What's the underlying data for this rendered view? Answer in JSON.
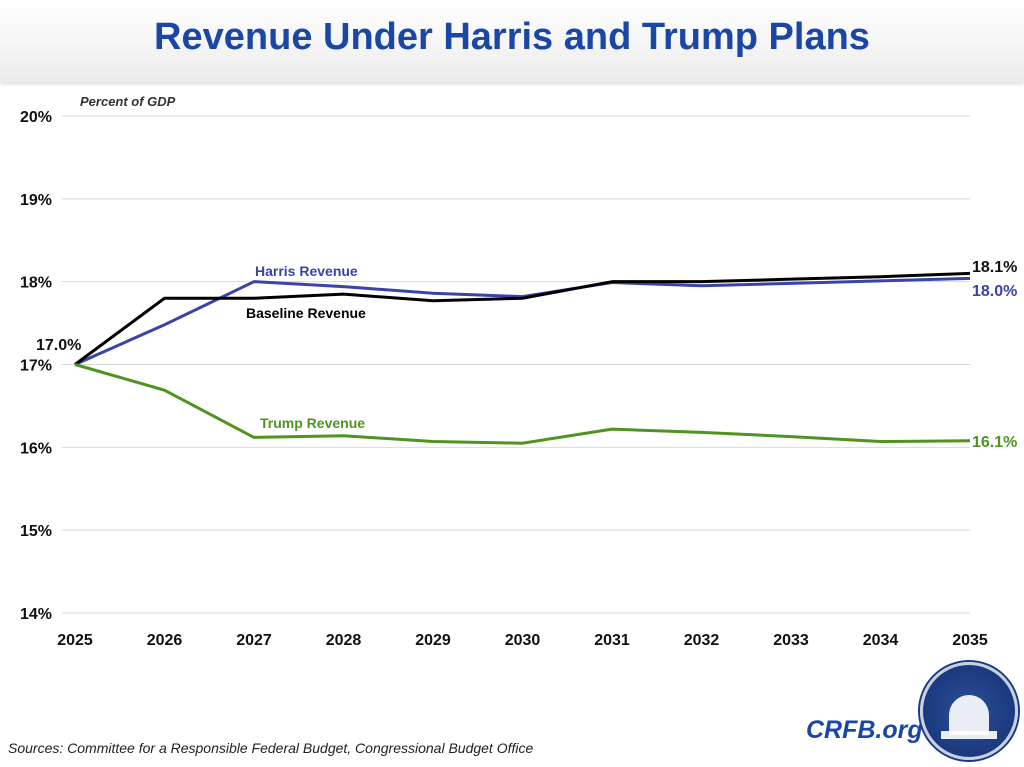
{
  "title": "Revenue Under Harris and Trump Plans",
  "footer": {
    "sources": "Sources: Committee for a Responsible Federal Budget, Congressional Budget Office",
    "brand": "CRFB.org"
  },
  "chart_data": {
    "type": "line",
    "title": "Revenue Under Harris and Trump Plans",
    "ylabel": "Percent of GDP",
    "xlabel": "",
    "x": [
      2025,
      2026,
      2027,
      2028,
      2029,
      2030,
      2031,
      2032,
      2033,
      2034,
      2035
    ],
    "ylim": [
      14,
      20
    ],
    "yticks": [
      "14%",
      "15%",
      "16%",
      "17%",
      "18%",
      "19%",
      "20%"
    ],
    "grid": true,
    "series": [
      {
        "name": "Baseline Revenue",
        "color": "#000000",
        "values": [
          17.0,
          17.8,
          17.8,
          17.85,
          17.77,
          17.8,
          18.0,
          18.0,
          18.03,
          18.06,
          18.1
        ]
      },
      {
        "name": "Harris Revenue",
        "color": "#3a43a8",
        "values": [
          17.0,
          17.48,
          18.0,
          17.94,
          17.86,
          17.82,
          17.99,
          17.95,
          17.98,
          18.01,
          18.04
        ]
      },
      {
        "name": "Trump Revenue",
        "color": "#4f9420",
        "values": [
          17.0,
          16.69,
          16.12,
          16.14,
          16.07,
          16.05,
          16.22,
          16.18,
          16.13,
          16.07,
          16.08
        ]
      }
    ],
    "annotations": {
      "start": "17.0%",
      "baseline_end": "18.1%",
      "harris_end": "18.0%",
      "trump_end": "16.1%"
    }
  }
}
